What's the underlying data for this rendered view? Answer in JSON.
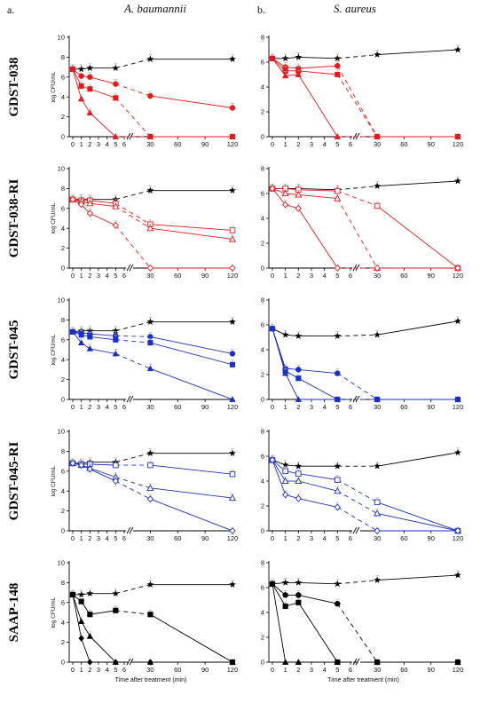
{
  "figure": {
    "label_a": "a.",
    "label_b": "b.",
    "col_a_title": "A. baumannii",
    "col_b_title": "S. aureus"
  },
  "chart_data": [
    {
      "type": "line",
      "row": "GDST-038",
      "col": "a",
      "ylabel": "log CFU/mL",
      "xlabel": "",
      "x": [
        0,
        1,
        2,
        5,
        30,
        120
      ],
      "yticks": [
        0,
        2,
        4,
        6,
        8,
        10
      ],
      "ymax": 10,
      "series": [
        {
          "color": "#000000",
          "marker": "star",
          "open": false,
          "values": [
            6.8,
            6.8,
            6.9,
            6.9,
            7.8,
            7.8
          ]
        },
        {
          "color": "#e8191b",
          "marker": "circle",
          "open": false,
          "values": [
            6.8,
            6.1,
            6.0,
            5.3,
            4.1,
            2.9
          ]
        },
        {
          "color": "#e8191b",
          "marker": "square",
          "open": false,
          "values": [
            6.8,
            5.1,
            4.8,
            3.9,
            0,
            0
          ]
        },
        {
          "color": "#e8191b",
          "marker": "triangle",
          "open": false,
          "values": [
            6.8,
            3.8,
            2.4,
            0,
            0,
            0
          ]
        }
      ]
    },
    {
      "type": "line",
      "row": "GDST-038",
      "col": "b",
      "ylabel": "",
      "xlabel": "",
      "x": [
        0,
        1,
        2,
        5,
        30,
        120
      ],
      "yticks": [
        0,
        2,
        4,
        6,
        8
      ],
      "ymax": 8,
      "series": [
        {
          "color": "#000000",
          "marker": "star",
          "open": false,
          "values": [
            6.3,
            6.3,
            6.4,
            6.3,
            6.6,
            7.0
          ]
        },
        {
          "color": "#e8191b",
          "marker": "circle",
          "open": false,
          "values": [
            6.3,
            5.6,
            5.5,
            5.7,
            0,
            0
          ]
        },
        {
          "color": "#e8191b",
          "marker": "square",
          "open": false,
          "values": [
            6.3,
            5.3,
            5.3,
            5.0,
            0,
            0
          ]
        },
        {
          "color": "#e8191b",
          "marker": "triangle",
          "open": false,
          "values": [
            6.3,
            4.9,
            5.0,
            0,
            0,
            0
          ]
        }
      ]
    },
    {
      "type": "line",
      "row": "GDST-038-RI",
      "col": "a",
      "ylabel": "log CFU/mL",
      "xlabel": "",
      "x": [
        0,
        1,
        2,
        5,
        30,
        120
      ],
      "yticks": [
        0,
        2,
        4,
        6,
        8,
        10
      ],
      "ymax": 10,
      "series": [
        {
          "color": "#000000",
          "marker": "star",
          "open": false,
          "values": [
            6.9,
            6.9,
            6.9,
            6.9,
            7.8,
            7.8
          ]
        },
        {
          "color": "#e8191b",
          "marker": "square",
          "open": true,
          "values": [
            6.9,
            6.8,
            6.8,
            6.5,
            4.4,
            3.8
          ]
        },
        {
          "color": "#e8191b",
          "marker": "triangle",
          "open": true,
          "values": [
            6.9,
            6.7,
            6.5,
            6.2,
            4.0,
            2.9
          ]
        },
        {
          "color": "#e8191b",
          "marker": "diamond",
          "open": true,
          "values": [
            6.9,
            6.4,
            5.5,
            4.3,
            0,
            0
          ]
        }
      ]
    },
    {
      "type": "line",
      "row": "GDST-038-RI",
      "col": "b",
      "ylabel": "",
      "xlabel": "",
      "x": [
        0,
        1,
        2,
        5,
        30,
        120
      ],
      "yticks": [
        0,
        2,
        4,
        6,
        8
      ],
      "ymax": 8,
      "series": [
        {
          "color": "#000000",
          "marker": "star",
          "open": false,
          "values": [
            6.4,
            6.4,
            6.4,
            6.3,
            6.6,
            7.0
          ]
        },
        {
          "color": "#e8191b",
          "marker": "square",
          "open": true,
          "values": [
            6.4,
            6.4,
            6.3,
            6.2,
            5.0,
            0
          ]
        },
        {
          "color": "#e8191b",
          "marker": "triangle",
          "open": true,
          "values": [
            6.4,
            6.0,
            5.9,
            5.6,
            0,
            0
          ]
        },
        {
          "color": "#e8191b",
          "marker": "diamond",
          "open": true,
          "values": [
            6.4,
            5.1,
            4.8,
            0,
            0,
            0
          ]
        }
      ]
    },
    {
      "type": "line",
      "row": "GDST-045",
      "col": "a",
      "ylabel": "log CFU/mL",
      "xlabel": "",
      "x": [
        0,
        1,
        2,
        5,
        30,
        120
      ],
      "yticks": [
        0,
        2,
        4,
        6,
        8,
        10
      ],
      "ymax": 10,
      "series": [
        {
          "color": "#000000",
          "marker": "star",
          "open": false,
          "values": [
            6.8,
            6.9,
            6.9,
            6.9,
            7.8,
            7.8
          ]
        },
        {
          "color": "#1a2fc9",
          "marker": "circle",
          "open": false,
          "values": [
            6.8,
            6.7,
            6.6,
            6.4,
            6.3,
            4.6
          ]
        },
        {
          "color": "#1a2fc9",
          "marker": "square",
          "open": false,
          "values": [
            6.8,
            6.5,
            6.3,
            6.0,
            5.7,
            3.5
          ]
        },
        {
          "color": "#1a2fc9",
          "marker": "triangle",
          "open": false,
          "values": [
            6.8,
            5.7,
            5.1,
            4.6,
            3.1,
            0
          ]
        }
      ]
    },
    {
      "type": "line",
      "row": "GDST-045",
      "col": "b",
      "ylabel": "",
      "xlabel": "",
      "x": [
        0,
        1,
        2,
        5,
        30,
        120
      ],
      "yticks": [
        0,
        2,
        4,
        6,
        8
      ],
      "ymax": 8,
      "series": [
        {
          "color": "#000000",
          "marker": "star",
          "open": false,
          "values": [
            5.7,
            5.2,
            5.1,
            5.1,
            5.2,
            6.3
          ]
        },
        {
          "color": "#1a2fc9",
          "marker": "circle",
          "open": false,
          "values": [
            5.7,
            2.5,
            2.4,
            2.1,
            0,
            0
          ]
        },
        {
          "color": "#1a2fc9",
          "marker": "square",
          "open": false,
          "values": [
            5.7,
            2.3,
            1.7,
            0,
            0,
            0
          ]
        },
        {
          "color": "#1a2fc9",
          "marker": "triangle",
          "open": false,
          "values": [
            5.7,
            2.1,
            0,
            0,
            0,
            0
          ]
        }
      ]
    },
    {
      "type": "line",
      "row": "GDST-045-RI",
      "col": "a",
      "ylabel": "log CFU/mL",
      "xlabel": "",
      "x": [
        0,
        1,
        2,
        5,
        30,
        120
      ],
      "yticks": [
        0,
        2,
        4,
        6,
        8,
        10
      ],
      "ymax": 10,
      "series": [
        {
          "color": "#000000",
          "marker": "star",
          "open": false,
          "values": [
            6.8,
            6.8,
            6.9,
            6.9,
            7.8,
            7.8
          ]
        },
        {
          "color": "#1a2fc9",
          "marker": "square",
          "open": true,
          "values": [
            6.8,
            6.7,
            6.7,
            6.6,
            6.6,
            5.7
          ]
        },
        {
          "color": "#1a2fc9",
          "marker": "triangle",
          "open": true,
          "values": [
            6.8,
            6.6,
            6.3,
            5.4,
            4.3,
            3.3
          ]
        },
        {
          "color": "#1a2fc9",
          "marker": "diamond",
          "open": true,
          "values": [
            6.8,
            6.6,
            6.2,
            5.0,
            3.2,
            0
          ]
        }
      ]
    },
    {
      "type": "line",
      "row": "GDST-045-RI",
      "col": "b",
      "ylabel": "",
      "xlabel": "",
      "x": [
        0,
        1,
        2,
        5,
        30,
        120
      ],
      "yticks": [
        0,
        2,
        4,
        6,
        8
      ],
      "ymax": 8,
      "series": [
        {
          "color": "#000000",
          "marker": "star",
          "open": false,
          "values": [
            5.7,
            5.3,
            5.2,
            5.2,
            5.2,
            6.3
          ]
        },
        {
          "color": "#1a2fc9",
          "marker": "square",
          "open": true,
          "values": [
            5.7,
            4.8,
            4.6,
            4.1,
            2.3,
            0
          ]
        },
        {
          "color": "#1a2fc9",
          "marker": "triangle",
          "open": true,
          "values": [
            5.7,
            4.0,
            4.0,
            3.2,
            1.4,
            0
          ]
        },
        {
          "color": "#1a2fc9",
          "marker": "diamond",
          "open": true,
          "values": [
            5.7,
            2.9,
            2.6,
            1.9,
            0,
            0
          ]
        }
      ]
    },
    {
      "type": "line",
      "row": "SAAP-148",
      "col": "a",
      "ylabel": "log CFU/mL",
      "xlabel": "Time after treatment (min)",
      "x": [
        0,
        1,
        2,
        5,
        30,
        120
      ],
      "yticks": [
        0,
        2,
        4,
        6,
        8,
        10
      ],
      "ymax": 10,
      "series": [
        {
          "color": "#000000",
          "marker": "star",
          "open": false,
          "values": [
            6.8,
            6.8,
            6.9,
            6.9,
            7.8,
            7.8
          ]
        },
        {
          "color": "#000000",
          "marker": "square",
          "open": false,
          "values": [
            6.8,
            6.1,
            4.8,
            5.2,
            4.8,
            0
          ]
        },
        {
          "color": "#000000",
          "marker": "triangle",
          "open": false,
          "values": [
            6.8,
            4.1,
            2.6,
            0,
            0,
            0
          ]
        },
        {
          "color": "#000000",
          "marker": "diamond",
          "open": false,
          "values": [
            6.8,
            2.4,
            0,
            0,
            0,
            0
          ]
        }
      ]
    },
    {
      "type": "line",
      "row": "SAAP-148",
      "col": "b",
      "ylabel": "",
      "xlabel": "Time after treatment (min)",
      "x": [
        0,
        1,
        2,
        5,
        30,
        120
      ],
      "yticks": [
        0,
        2,
        4,
        6,
        8
      ],
      "ymax": 8,
      "series": [
        {
          "color": "#000000",
          "marker": "star",
          "open": false,
          "values": [
            6.3,
            6.4,
            6.4,
            6.3,
            6.6,
            7.0
          ]
        },
        {
          "color": "#000000",
          "marker": "circle",
          "open": false,
          "values": [
            6.3,
            5.4,
            5.4,
            4.7,
            0,
            0
          ]
        },
        {
          "color": "#000000",
          "marker": "square",
          "open": false,
          "values": [
            6.3,
            4.5,
            4.8,
            0,
            0,
            0
          ]
        },
        {
          "color": "#000000",
          "marker": "triangle",
          "open": false,
          "values": [
            6.3,
            0,
            0,
            0,
            0,
            0
          ]
        }
      ]
    }
  ]
}
